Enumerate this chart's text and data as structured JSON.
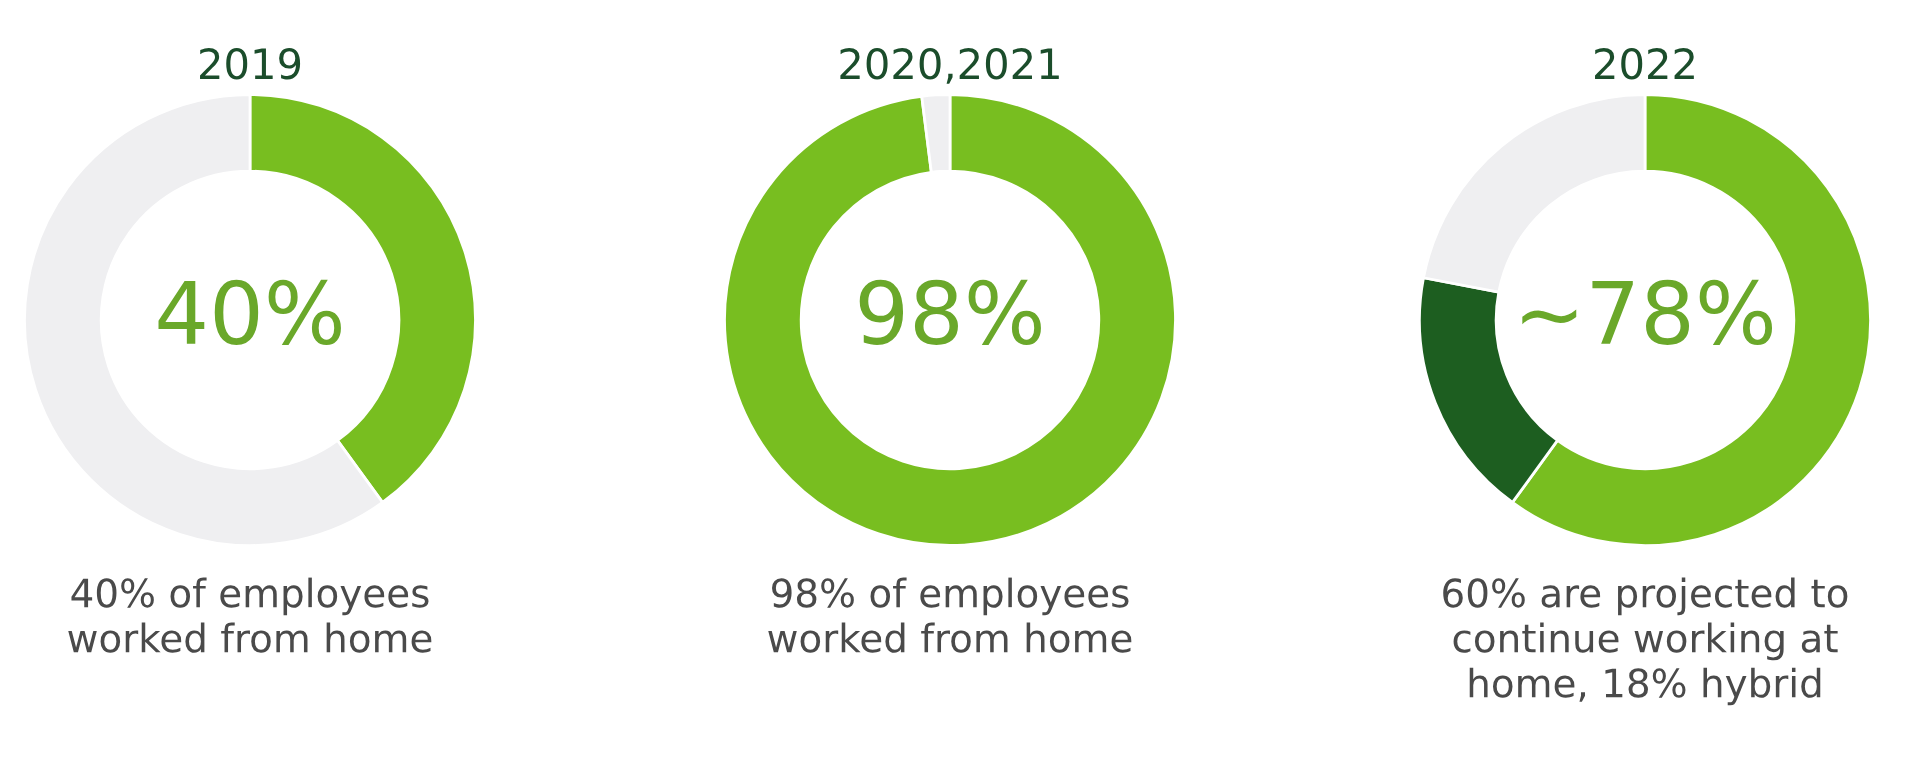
{
  "chart_data": [
    {
      "type": "donut",
      "title": "2019",
      "categories": [
        null,
        null
      ],
      "values": [
        40,
        60
      ],
      "colors": [
        "#78be20",
        "#efeff1"
      ],
      "annotations": [
        "40%",
        "40% of employees\nworked from home"
      ]
    },
    {
      "type": "donut",
      "title": "2020,2021",
      "categories": [
        null,
        null
      ],
      "values": [
        98,
        2
      ],
      "colors": [
        "#78be20",
        "#efeff1"
      ],
      "annotations": [
        "98%",
        "98% of employees\nworked from home"
      ]
    },
    {
      "type": "donut",
      "title": "2022",
      "categories": [
        null,
        null,
        null
      ],
      "values": [
        60,
        18,
        22
      ],
      "colors": [
        "#78be20",
        "#1d5e20",
        "#efeff1"
      ],
      "annotations": [
        "~78%",
        "60% are projected to\ncontinue working at\nhome, 18% hybrid"
      ]
    }
  ]
}
